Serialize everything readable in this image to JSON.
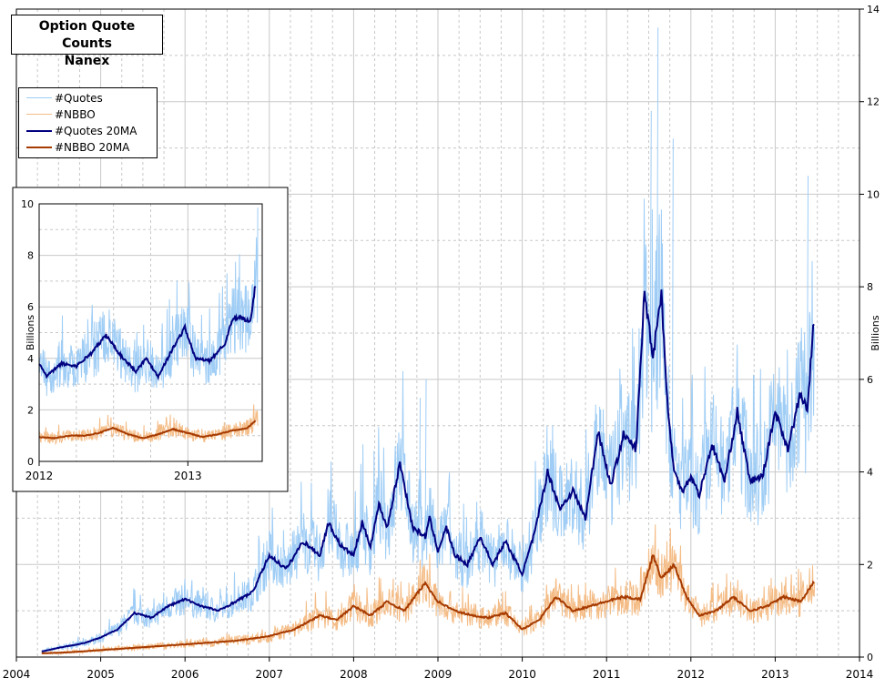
{
  "title": {
    "line1": "Option Quote Counts",
    "line2": "Nanex"
  },
  "colors": {
    "quotes": "#9fcdf5",
    "nbbo": "#f4bc86",
    "quotes_ma": "#000080",
    "nbbo_ma": "#a63a00",
    "grid": "#c8c8c8"
  },
  "legend": [
    {
      "label": "#Quotes",
      "color": "#9fcdf5",
      "width": 1
    },
    {
      "label": "#NBBO",
      "color": "#f4bc86",
      "width": 1
    },
    {
      "label": "#Quotes 20MA",
      "color": "#000080",
      "width": 2
    },
    {
      "label": "#NBBO 20MA",
      "color": "#a63a00",
      "width": 2
    }
  ],
  "chart_data": [
    {
      "type": "line",
      "title": "Option Quote Counts",
      "subtitle": "Nanex",
      "x_ticks": [
        "2004",
        "2005",
        "2006",
        "2007",
        "2008",
        "2009",
        "2010",
        "2011",
        "2012",
        "2013",
        "2014"
      ],
      "xlim": [
        2004,
        2014
      ],
      "ylabel": "Billions",
      "y_ticks": [
        0,
        2,
        4,
        6,
        8,
        10,
        12,
        14
      ],
      "ylim": [
        0,
        14
      ],
      "y_axis_side": "right",
      "grid": true,
      "legend_position": "top-left",
      "series": [
        {
          "name": "#Quotes 20MA",
          "x": [
            2004.3,
            2004.5,
            2004.8,
            2005.0,
            2005.2,
            2005.4,
            2005.6,
            2005.8,
            2006.0,
            2006.2,
            2006.4,
            2006.6,
            2006.8,
            2007.0,
            2007.2,
            2007.4,
            2007.6,
            2007.7,
            2007.85,
            2008.0,
            2008.1,
            2008.2,
            2008.3,
            2008.4,
            2008.55,
            2008.7,
            2008.85,
            2008.9,
            2009.0,
            2009.1,
            2009.2,
            2009.35,
            2009.5,
            2009.65,
            2009.8,
            2010.0,
            2010.15,
            2010.3,
            2010.45,
            2010.6,
            2010.75,
            2010.9,
            2011.05,
            2011.2,
            2011.35,
            2011.45,
            2011.55,
            2011.65,
            2011.72,
            2011.8,
            2011.9,
            2012.0,
            2012.1,
            2012.25,
            2012.4,
            2012.55,
            2012.7,
            2012.85,
            2013.0,
            2013.15,
            2013.3,
            2013.38,
            2013.45
          ],
          "y": [
            0.12,
            0.2,
            0.3,
            0.42,
            0.6,
            0.95,
            0.85,
            1.1,
            1.25,
            1.1,
            1.0,
            1.2,
            1.4,
            2.2,
            1.9,
            2.5,
            2.2,
            2.9,
            2.4,
            2.2,
            2.9,
            2.4,
            3.3,
            2.8,
            4.2,
            2.8,
            2.6,
            3.0,
            2.3,
            2.8,
            2.2,
            2.0,
            2.6,
            2.0,
            2.5,
            1.8,
            2.7,
            4.0,
            3.2,
            3.6,
            3.0,
            4.9,
            3.7,
            4.8,
            4.5,
            7.9,
            6.5,
            7.9,
            5.5,
            4.0,
            3.6,
            3.9,
            3.5,
            4.6,
            3.8,
            5.3,
            3.8,
            3.9,
            5.3,
            4.5,
            5.7,
            5.3,
            7.1
          ]
        },
        {
          "name": "#NBBO 20MA",
          "x": [
            2004.3,
            2004.6,
            2005.0,
            2005.4,
            2005.8,
            2006.2,
            2006.6,
            2007.0,
            2007.3,
            2007.6,
            2007.8,
            2008.0,
            2008.2,
            2008.4,
            2008.6,
            2008.85,
            2009.0,
            2009.2,
            2009.4,
            2009.6,
            2009.8,
            2010.0,
            2010.2,
            2010.4,
            2010.6,
            2010.8,
            2011.0,
            2011.2,
            2011.4,
            2011.55,
            2011.65,
            2011.8,
            2011.95,
            2012.1,
            2012.3,
            2012.5,
            2012.7,
            2012.9,
            2013.1,
            2013.3,
            2013.45
          ],
          "y": [
            0.08,
            0.1,
            0.15,
            0.2,
            0.25,
            0.3,
            0.35,
            0.45,
            0.6,
            0.9,
            0.8,
            1.1,
            0.9,
            1.2,
            1.0,
            1.6,
            1.2,
            1.0,
            0.9,
            0.85,
            0.95,
            0.6,
            0.8,
            1.3,
            1.0,
            1.1,
            1.2,
            1.3,
            1.25,
            2.2,
            1.7,
            2.0,
            1.3,
            0.9,
            1.0,
            1.3,
            1.0,
            1.1,
            1.3,
            1.2,
            1.6
          ]
        }
      ]
    },
    {
      "type": "line",
      "x_ticks": [
        "2012",
        "2013"
      ],
      "xlim": [
        2012,
        2013.5
      ],
      "ylabel": "Billions",
      "y_ticks": [
        0,
        2,
        4,
        6,
        8,
        10
      ],
      "ylim": [
        0,
        10
      ],
      "grid": true,
      "series": [
        {
          "name": "#Quotes 20MA",
          "x": [
            2012.0,
            2012.05,
            2012.15,
            2012.25,
            2012.35,
            2012.45,
            2012.55,
            2012.65,
            2012.72,
            2012.8,
            2012.9,
            2012.98,
            2013.05,
            2013.15,
            2013.25,
            2013.3,
            2013.35,
            2013.42,
            2013.46
          ],
          "y": [
            3.8,
            3.3,
            3.8,
            3.7,
            4.2,
            4.9,
            4.1,
            3.5,
            4.0,
            3.3,
            4.4,
            5.2,
            4.0,
            3.9,
            4.6,
            5.5,
            5.6,
            5.4,
            7.1
          ]
        },
        {
          "name": "#NBBO 20MA",
          "x": [
            2012.0,
            2012.1,
            2012.2,
            2012.3,
            2012.4,
            2012.5,
            2012.6,
            2012.7,
            2012.8,
            2012.9,
            2013.0,
            2013.1,
            2013.2,
            2013.3,
            2013.4,
            2013.46
          ],
          "y": [
            0.95,
            0.9,
            1.0,
            1.0,
            1.1,
            1.3,
            1.05,
            0.9,
            1.05,
            1.25,
            1.1,
            0.95,
            1.05,
            1.2,
            1.3,
            1.6
          ]
        }
      ]
    }
  ]
}
